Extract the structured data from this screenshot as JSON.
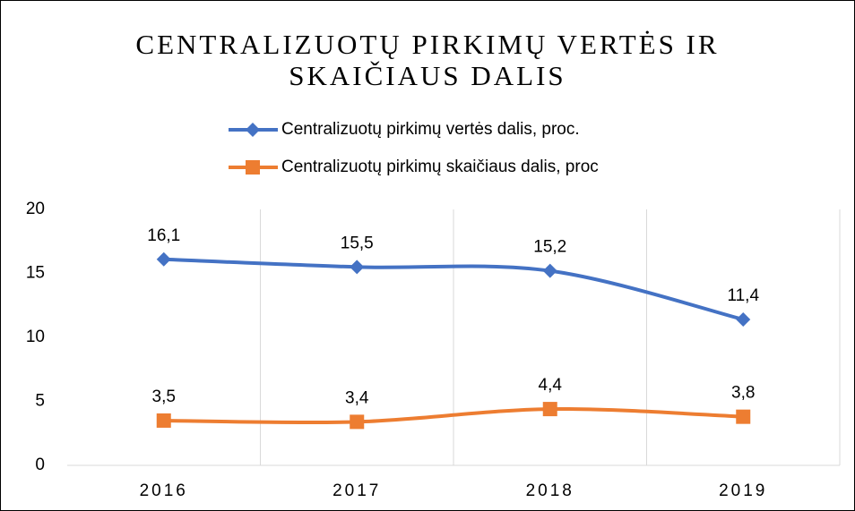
{
  "chart_data": {
    "type": "line",
    "title": "CENTRALIZUOTŲ PIRKIMŲ VERTĖS IR SKAIČIAUS DALIS",
    "categories": [
      "2016",
      "2017",
      "2018",
      "2019"
    ],
    "series": [
      {
        "name": "Centralizuotų pirkimų vertės dalis, proc.",
        "color": "#4472c4",
        "marker": "diamond",
        "values": [
          16.1,
          15.5,
          15.2,
          11.4
        ],
        "value_labels": [
          "16,1",
          "15,5",
          "15,2",
          "11,4"
        ]
      },
      {
        "name": "Centralizuotų pirkimų skaičiaus dalis, proc",
        "color": "#ed7d31",
        "marker": "square",
        "values": [
          3.5,
          3.4,
          4.4,
          3.8
        ],
        "value_labels": [
          "3,5",
          "3,4",
          "4,4",
          "3,8"
        ]
      }
    ],
    "ylim": [
      0,
      20
    ],
    "yticks": [
      0,
      5,
      10,
      15,
      20
    ],
    "grid": "vertical",
    "legend": "top",
    "smooth": true
  }
}
